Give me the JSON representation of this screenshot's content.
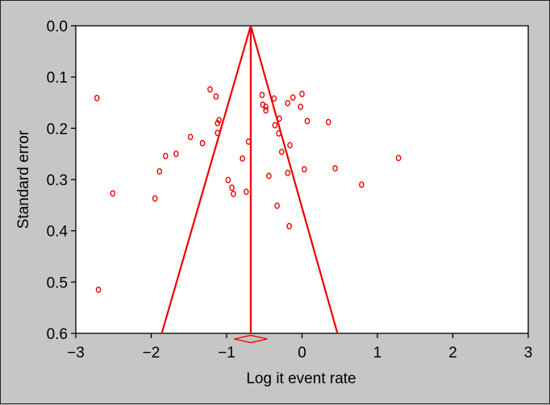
{
  "chart_data": {
    "type": "scatter",
    "title": "",
    "xlabel": "Log it event rate",
    "ylabel": "Standard error",
    "xlim": [
      -3,
      3
    ],
    "ylim": [
      0,
      0.6
    ],
    "y_reversed": true,
    "grid": false,
    "x_ticks": [
      {
        "value": -3,
        "label": "−3"
      },
      {
        "value": -2,
        "label": "−2"
      },
      {
        "value": -1,
        "label": "−1"
      },
      {
        "value": 0,
        "label": "0"
      },
      {
        "value": 1,
        "label": "1"
      },
      {
        "value": 2,
        "label": "2"
      },
      {
        "value": 3,
        "label": "3"
      }
    ],
    "y_ticks": [
      {
        "value": 0.0,
        "label": "0.0"
      },
      {
        "value": 0.1,
        "label": "0.1"
      },
      {
        "value": 0.2,
        "label": "0.2"
      },
      {
        "value": 0.3,
        "label": "0.3"
      },
      {
        "value": 0.4,
        "label": "0.4"
      },
      {
        "value": 0.5,
        "label": "0.5"
      },
      {
        "value": 0.6,
        "label": "0.6"
      }
    ],
    "pooled_estimate": -0.68,
    "funnel_lines": [
      {
        "from": [
          -0.68,
          0.0
        ],
        "to": [
          -1.86,
          0.6
        ]
      },
      {
        "from": [
          -0.68,
          0.0
        ],
        "to": [
          0.47,
          0.6
        ]
      },
      {
        "from": [
          -0.68,
          0.0
        ],
        "to": [
          -0.68,
          0.6
        ]
      }
    ],
    "diamond": {
      "center": -0.68,
      "halfwidth": 0.22
    },
    "points": [
      {
        "x": -2.72,
        "y": 0.141
      },
      {
        "x": -2.7,
        "y": 0.515
      },
      {
        "x": -2.51,
        "y": 0.327
      },
      {
        "x": -1.95,
        "y": 0.337
      },
      {
        "x": -1.89,
        "y": 0.284
      },
      {
        "x": -1.81,
        "y": 0.254
      },
      {
        "x": -1.67,
        "y": 0.25
      },
      {
        "x": -1.48,
        "y": 0.217
      },
      {
        "x": -1.32,
        "y": 0.229
      },
      {
        "x": -1.22,
        "y": 0.124
      },
      {
        "x": -1.14,
        "y": 0.138
      },
      {
        "x": -1.12,
        "y": 0.19
      },
      {
        "x": -1.1,
        "y": 0.184
      },
      {
        "x": -1.12,
        "y": 0.209
      },
      {
        "x": -0.98,
        "y": 0.301
      },
      {
        "x": -0.93,
        "y": 0.316
      },
      {
        "x": -0.91,
        "y": 0.328
      },
      {
        "x": -0.79,
        "y": 0.259
      },
      {
        "x": -0.74,
        "y": 0.324
      },
      {
        "x": -0.71,
        "y": 0.226
      },
      {
        "x": -0.53,
        "y": 0.135
      },
      {
        "x": -0.52,
        "y": 0.154
      },
      {
        "x": -0.48,
        "y": 0.158
      },
      {
        "x": -0.48,
        "y": 0.165
      },
      {
        "x": -0.44,
        "y": 0.293
      },
      {
        "x": -0.37,
        "y": 0.142
      },
      {
        "x": -0.36,
        "y": 0.194
      },
      {
        "x": -0.33,
        "y": 0.351
      },
      {
        "x": -0.31,
        "y": 0.21
      },
      {
        "x": -0.3,
        "y": 0.181
      },
      {
        "x": -0.27,
        "y": 0.246
      },
      {
        "x": -0.19,
        "y": 0.151
      },
      {
        "x": -0.19,
        "y": 0.287
      },
      {
        "x": -0.17,
        "y": 0.391
      },
      {
        "x": -0.16,
        "y": 0.233
      },
      {
        "x": -0.12,
        "y": 0.14
      },
      {
        "x": -0.02,
        "y": 0.158
      },
      {
        "x": 0.0,
        "y": 0.133
      },
      {
        "x": 0.03,
        "y": 0.28
      },
      {
        "x": 0.07,
        "y": 0.186
      },
      {
        "x": 0.35,
        "y": 0.188
      },
      {
        "x": 0.44,
        "y": 0.278
      },
      {
        "x": 0.79,
        "y": 0.31
      },
      {
        "x": 1.28,
        "y": 0.258
      }
    ],
    "colors": {
      "marks": "#ee0000",
      "axis": "#000000",
      "plot_bg": "#ffffff",
      "page_bg": "#c6c6c6"
    }
  }
}
